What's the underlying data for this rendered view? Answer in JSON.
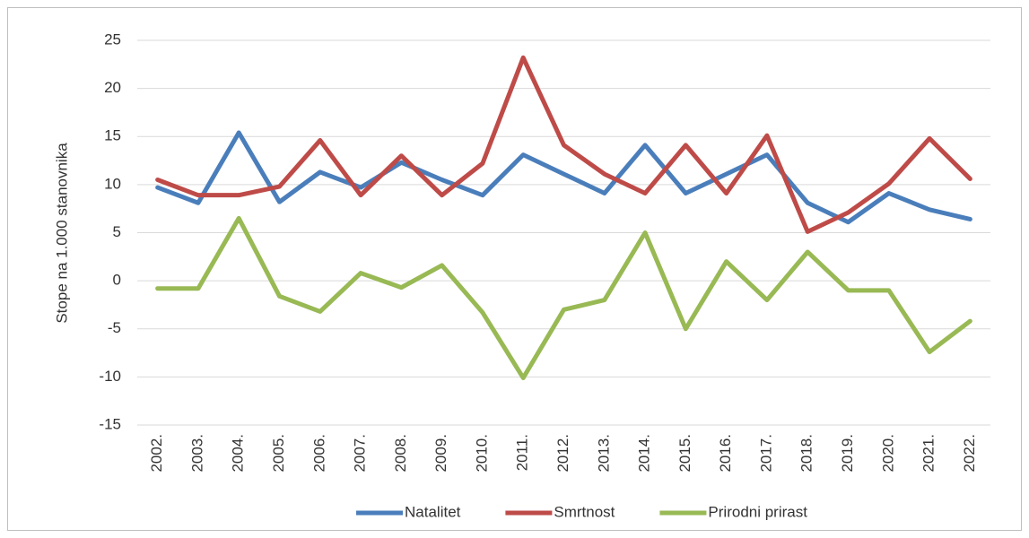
{
  "chart_data": {
    "type": "line",
    "ylabel": "Stope na 1.000 stanovnika",
    "categories": [
      "2002.",
      "2003.",
      "2004.",
      "2005.",
      "2006.",
      "2007.",
      "2008.",
      "2009.",
      "2010.",
      "2011.",
      "2012.",
      "2013.",
      "2014.",
      "2015.",
      "2016.",
      "2017.",
      "2018.",
      "2019.",
      "2020.",
      "2021.",
      "2022."
    ],
    "series": [
      {
        "name": "Natalitet",
        "color": "#4a7ebb",
        "values": [
          9.7,
          8.1,
          15.4,
          8.2,
          11.3,
          9.7,
          12.3,
          10.5,
          8.9,
          13.1,
          11.1,
          9.1,
          14.1,
          9.1,
          11.1,
          13.1,
          8.1,
          6.1,
          9.1,
          7.4,
          6.4
        ]
      },
      {
        "name": "Smrtnost",
        "color": "#be4b48",
        "values": [
          10.5,
          8.9,
          8.9,
          9.8,
          14.6,
          8.9,
          13.0,
          8.9,
          12.2,
          23.2,
          14.1,
          11.1,
          9.1,
          14.1,
          9.1,
          15.1,
          5.1,
          7.1,
          10.1,
          14.8,
          10.6
        ]
      },
      {
        "name": "Prirodni prirast",
        "color": "#98b954",
        "values": [
          -0.8,
          -0.8,
          6.5,
          -1.6,
          -3.2,
          0.8,
          -0.7,
          1.6,
          -3.3,
          -10.1,
          -3.0,
          -2.0,
          5.0,
          -5.0,
          2.0,
          -2.0,
          3.0,
          -1.0,
          -1.0,
          -7.4,
          -4.2
        ]
      }
    ],
    "ylim": [
      -15,
      25
    ],
    "yticks": [
      -15,
      -10,
      -5,
      0,
      5,
      10,
      15,
      20,
      25
    ],
    "grid": true,
    "legend": "bottom"
  }
}
